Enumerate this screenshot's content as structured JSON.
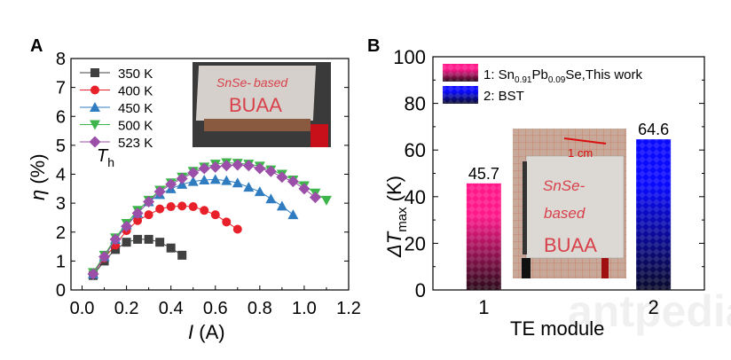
{
  "chart_data": [
    {
      "panel_label": "A",
      "type": "scatter",
      "xlabel_italic": "I",
      "xlabel_unit": " (A)",
      "ylabel_italic": "η",
      "ylabel_unit": " (%)",
      "xlim": [
        -0.05,
        1.2
      ],
      "ylim": [
        0,
        8
      ],
      "xticks": [
        "0.0",
        "0.2",
        "0.4",
        "0.6",
        "0.8",
        "1.0",
        "1.2"
      ],
      "xtick_values": [
        0,
        0.2,
        0.4,
        0.6,
        0.8,
        1.0,
        1.2
      ],
      "yticks": [
        "0",
        "1",
        "2",
        "3",
        "4",
        "5",
        "6",
        "7",
        "8"
      ],
      "grid": false,
      "legend_placement": "top-left",
      "legend_title_italic": "T",
      "legend_title_sub": "h",
      "inset_photo_text": "SnSe-based BUAA",
      "series": [
        {
          "name": "350 K",
          "color": "#404040",
          "marker": "square",
          "x": [
            0.05,
            0.1,
            0.15,
            0.2,
            0.25,
            0.3,
            0.35,
            0.4,
            0.45
          ],
          "y": [
            0.5,
            1.0,
            1.4,
            1.65,
            1.75,
            1.75,
            1.65,
            1.45,
            1.2
          ]
        },
        {
          "name": "400 K",
          "color": "#e8202a",
          "marker": "circle",
          "x": [
            0.05,
            0.1,
            0.15,
            0.2,
            0.25,
            0.3,
            0.35,
            0.4,
            0.45,
            0.5,
            0.55,
            0.6,
            0.65,
            0.7
          ],
          "y": [
            0.55,
            1.1,
            1.55,
            2.05,
            2.4,
            2.6,
            2.8,
            2.88,
            2.9,
            2.88,
            2.75,
            2.6,
            2.35,
            2.1
          ]
        },
        {
          "name": "450 K",
          "color": "#2f7cc0",
          "marker": "triangle-up",
          "x": [
            0.05,
            0.1,
            0.15,
            0.2,
            0.25,
            0.3,
            0.35,
            0.4,
            0.45,
            0.5,
            0.55,
            0.6,
            0.65,
            0.7,
            0.75,
            0.8,
            0.85,
            0.9,
            0.95
          ],
          "y": [
            0.55,
            1.15,
            1.75,
            2.25,
            2.65,
            3.05,
            3.3,
            3.5,
            3.65,
            3.75,
            3.8,
            3.82,
            3.78,
            3.7,
            3.55,
            3.4,
            3.15,
            2.9,
            2.6
          ]
        },
        {
          "name": "500 K",
          "color": "#3db54a",
          "marker": "triangle-down",
          "x": [
            0.05,
            0.1,
            0.15,
            0.2,
            0.25,
            0.3,
            0.35,
            0.4,
            0.45,
            0.5,
            0.55,
            0.6,
            0.65,
            0.7,
            0.75,
            0.8,
            0.85,
            0.9,
            0.95,
            1.0,
            1.05,
            1.1
          ],
          "y": [
            0.6,
            1.2,
            1.8,
            2.3,
            2.75,
            3.1,
            3.45,
            3.7,
            3.9,
            4.1,
            4.25,
            4.35,
            4.4,
            4.38,
            4.35,
            4.28,
            4.15,
            4.0,
            3.8,
            3.6,
            3.35,
            3.1
          ]
        },
        {
          "name": "523 K",
          "color": "#9b4fa8",
          "marker": "diamond",
          "x": [
            0.05,
            0.1,
            0.15,
            0.2,
            0.25,
            0.3,
            0.35,
            0.4,
            0.45,
            0.5,
            0.55,
            0.6,
            0.65,
            0.7,
            0.75,
            0.8,
            0.85,
            0.9,
            0.95,
            1.0,
            1.05
          ],
          "y": [
            0.55,
            1.15,
            1.75,
            2.2,
            2.65,
            3.05,
            3.4,
            3.65,
            3.85,
            4.05,
            4.2,
            4.25,
            4.3,
            4.32,
            4.3,
            4.2,
            4.1,
            3.9,
            3.75,
            3.5,
            3.2
          ]
        }
      ]
    },
    {
      "panel_label": "B",
      "type": "bar",
      "categories": [
        "1",
        "2"
      ],
      "x": [
        1,
        2
      ],
      "values": [
        45.7,
        64.6
      ],
      "data_labels": [
        "45.7",
        "64.6"
      ],
      "xlabel": "TE module",
      "ylabel_italic": "ΔT",
      "ylabel_sub": "max",
      "ylabel_unit": " (K)",
      "xlim": [
        0.7,
        2.3
      ],
      "ylim": [
        0,
        100
      ],
      "yticks": [
        "0",
        "20",
        "40",
        "60",
        "80",
        "100"
      ],
      "grid": false,
      "legend_placement": "top-left",
      "legend": [
        {
          "prefix": "1: Sn",
          "sub1": "0.91",
          "mid": "Pb",
          "sub2": "0.09",
          "suffix": "Se,This work",
          "color": "#ff1a8c"
        },
        {
          "prefix": "2: BST",
          "color": "#0a0aff"
        }
      ],
      "bar_colors": [
        "#ff1a8c",
        "#0a0aff"
      ],
      "inset_photo_text": "SnSe-based BUAA",
      "inset_scale_label": "1 cm"
    }
  ],
  "watermark": "antpedia"
}
